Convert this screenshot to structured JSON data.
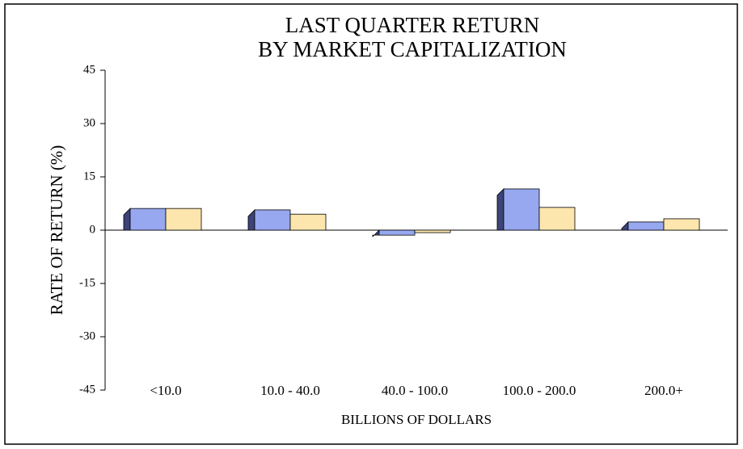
{
  "chart_data": {
    "type": "bar",
    "title": [
      "LAST QUARTER RETURN",
      "BY MARKET CAPITALIZATION"
    ],
    "x_label": "BILLIONS OF DOLLARS",
    "y_label": "RATE OF RETURN (%)",
    "categories": [
      "<10.0",
      "10.0 - 40.0",
      "40.0 - 100.0",
      "100.0 - 200.0",
      "200.0+"
    ],
    "series": [
      {
        "color": "#97a8f0",
        "values": [
          6.1,
          5.7,
          -1.4,
          11.6,
          2.3
        ]
      },
      {
        "color": "#fde5ae",
        "values": [
          6.1,
          4.5,
          -0.7,
          6.4,
          3.2
        ]
      }
    ],
    "ylim": [
      -45,
      45
    ],
    "yticks": [
      -45,
      -30,
      -15,
      0,
      15,
      30,
      45
    ]
  }
}
